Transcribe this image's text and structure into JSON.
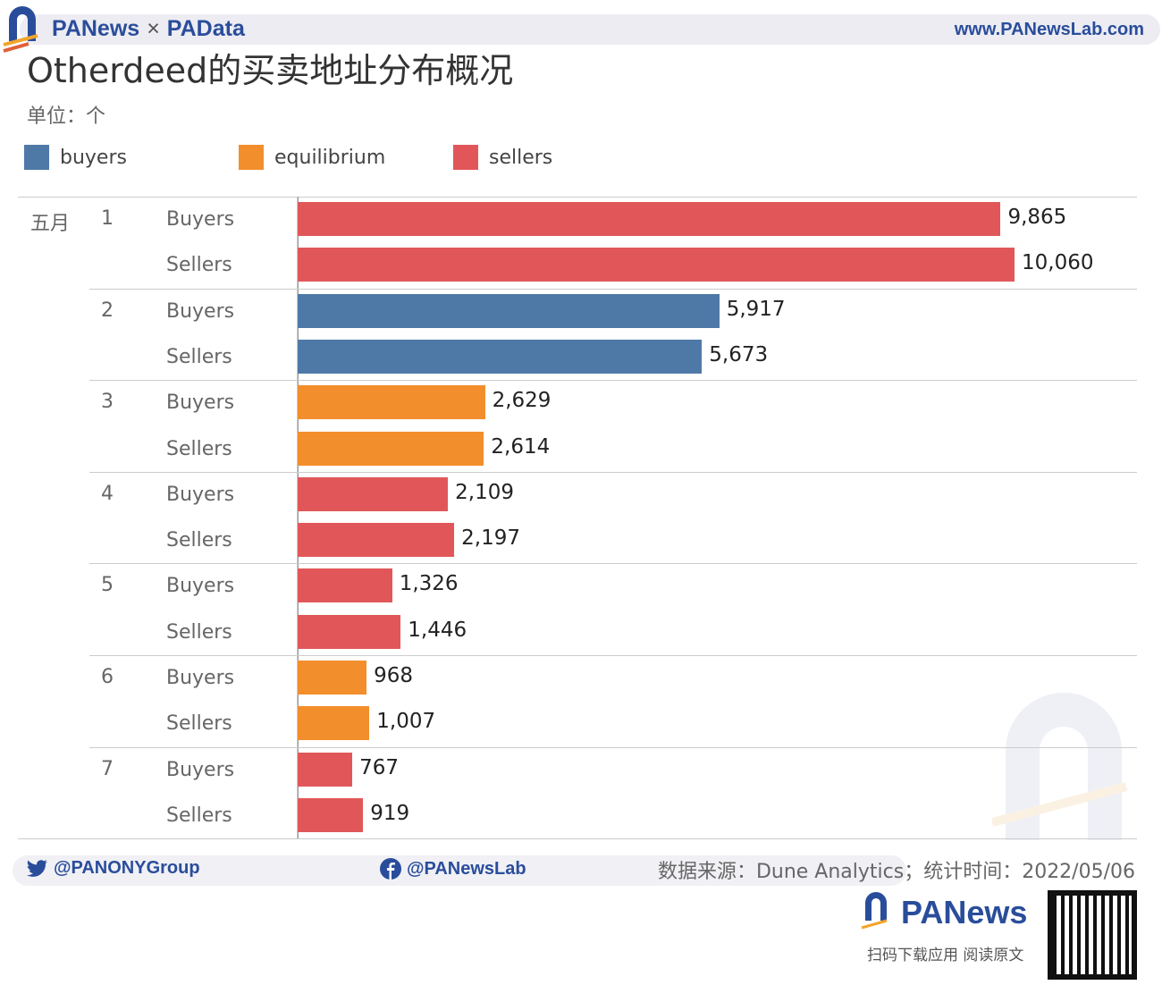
{
  "header": {
    "brand_left": "PANews",
    "brand_sep": "×",
    "brand_right": "PAData",
    "site": "www.PANewsLab.com"
  },
  "title": "Otherdeed的买卖地址分布概况",
  "unit": "单位：个",
  "colors": {
    "buyers": "#4e79a7",
    "equilibrium": "#f28e2b",
    "sellers": "#e15759"
  },
  "chart_data": {
    "type": "bar",
    "orientation": "horizontal",
    "title": "Otherdeed的买卖地址分布概况",
    "month": "五月",
    "legend": [
      "buyers",
      "equilibrium",
      "sellers"
    ],
    "legend_placement": "top-left",
    "groups": [
      {
        "day": "1",
        "rows": [
          {
            "label": "Buyers",
            "value": 9865,
            "value_label": "9,865",
            "category": "sellers"
          },
          {
            "label": "Sellers",
            "value": 10060,
            "value_label": "10,060",
            "category": "sellers"
          }
        ]
      },
      {
        "day": "2",
        "rows": [
          {
            "label": "Buyers",
            "value": 5917,
            "value_label": "5,917",
            "category": "buyers"
          },
          {
            "label": "Sellers",
            "value": 5673,
            "value_label": "5,673",
            "category": "buyers"
          }
        ]
      },
      {
        "day": "3",
        "rows": [
          {
            "label": "Buyers",
            "value": 2629,
            "value_label": "2,629",
            "category": "equilibrium"
          },
          {
            "label": "Sellers",
            "value": 2614,
            "value_label": "2,614",
            "category": "equilibrium"
          }
        ]
      },
      {
        "day": "4",
        "rows": [
          {
            "label": "Buyers",
            "value": 2109,
            "value_label": "2,109",
            "category": "sellers"
          },
          {
            "label": "Sellers",
            "value": 2197,
            "value_label": "2,197",
            "category": "sellers"
          }
        ]
      },
      {
        "day": "5",
        "rows": [
          {
            "label": "Buyers",
            "value": 1326,
            "value_label": "1,326",
            "category": "sellers"
          },
          {
            "label": "Sellers",
            "value": 1446,
            "value_label": "1,446",
            "category": "sellers"
          }
        ]
      },
      {
        "day": "6",
        "rows": [
          {
            "label": "Buyers",
            "value": 968,
            "value_label": "968",
            "category": "equilibrium"
          },
          {
            "label": "Sellers",
            "value": 1007,
            "value_label": "1,007",
            "category": "equilibrium"
          }
        ]
      },
      {
        "day": "7",
        "rows": [
          {
            "label": "Buyers",
            "value": 767,
            "value_label": "767",
            "category": "sellers"
          },
          {
            "label": "Sellers",
            "value": 919,
            "value_label": "919",
            "category": "sellers"
          }
        ]
      }
    ],
    "xlim": [
      0,
      10060
    ]
  },
  "footer": {
    "twitter": "@PANONYGroup",
    "facebook": "@PANewsLab",
    "source": "数据来源：Dune Analytics；统计时间：2022/05/06",
    "logo": "PANews",
    "cta": "扫码下载应用  阅读原文"
  }
}
